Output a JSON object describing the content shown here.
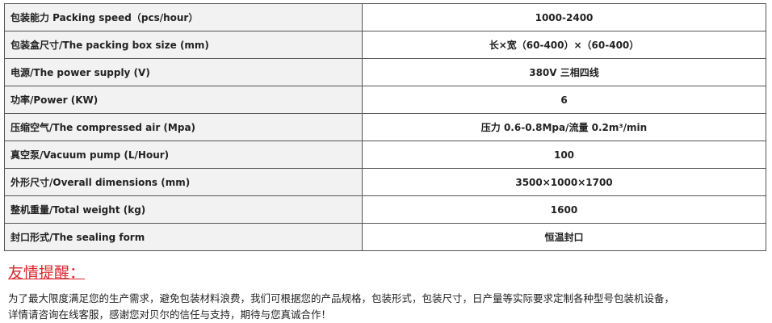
{
  "table": {
    "rows": [
      [
        "包装能力 Packing speed（pcs/hour）",
        "1000-2400"
      ],
      [
        "包装盒尺寸/The packing box size (mm)",
        "长×宽（60-400）×（60-400）"
      ],
      [
        "电源/The power supply (V)",
        "380V  三相四线"
      ],
      [
        "功率/Power (KW)",
        "6"
      ],
      [
        "压缩空气/The compressed air (Mpa)",
        "压力 0.6-0.8Mpa/流量 0.2m³/min"
      ],
      [
        "真空泵/Vacuum pump (L/Hour)",
        "100"
      ],
      [
        "外形尺寸/Overall dimensions (mm)",
        "3500×1000×1700"
      ],
      [
        "整机重量/Total weight (kg)",
        "1600"
      ],
      [
        "封口形式/The sealing form",
        "恒温封口"
      ]
    ]
  },
  "notice": {
    "title": "友情提醒：",
    "lines": [
      "为了最大限度满足您的生产需求，避免包装材料浪费，我们可根据您的产品规格，包装形式，包装尺寸，日产量等实际要求定制各种型号包装机设备，",
      "详情请咨询在线客服，感谢您对贝尔的信任与支持，期待与您真诚合作！"
    ]
  }
}
